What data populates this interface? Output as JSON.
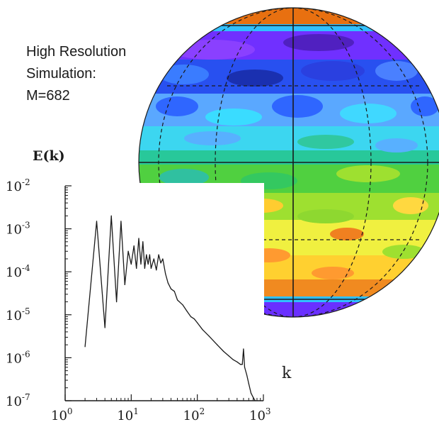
{
  "caption": {
    "line1": "High Resolution",
    "line2": "Simulation:",
    "line3": "M=682"
  },
  "globe": {
    "description_colors": [
      "#e06a10",
      "#ff9a30",
      "#ffd030",
      "#ffff40",
      "#9ae030",
      "#40d040",
      "#20c0a0",
      "#40d0ff",
      "#70b0ff",
      "#3060ff",
      "#2030c0",
      "#7a30ff"
    ]
  },
  "chart_data": {
    "type": "line",
    "title": "",
    "ylabel": "E(k)",
    "xlabel": "k",
    "xscale": "log",
    "yscale": "log",
    "xlim": [
      1,
      1000
    ],
    "ylim": [
      1e-07,
      0.01
    ],
    "x_ticks": [
      {
        "base": "10",
        "exp": "0"
      },
      {
        "base": "10",
        "exp": "1"
      },
      {
        "base": "10",
        "exp": "2"
      },
      {
        "base": "10",
        "exp": "3"
      }
    ],
    "y_ticks": [
      {
        "base": "10",
        "exp": "-2"
      },
      {
        "base": "10",
        "exp": "-3"
      },
      {
        "base": "10",
        "exp": "-4"
      },
      {
        "base": "10",
        "exp": "-5"
      },
      {
        "base": "10",
        "exp": "-6"
      },
      {
        "base": "10",
        "exp": "-7"
      }
    ],
    "series": [
      {
        "color": "#1a1a1a",
        "x": [
          2,
          3,
          4,
          5,
          6,
          7,
          8,
          9,
          10,
          11,
          12,
          13,
          14,
          15,
          16,
          17,
          18,
          19,
          20,
          22,
          24,
          26,
          28,
          30,
          33,
          36,
          40,
          45,
          50,
          60,
          70,
          80,
          90,
          100,
          120,
          150,
          200,
          250,
          300,
          350,
          400,
          450,
          480,
          500,
          520,
          560,
          600,
          650,
          700,
          750
        ],
        "y": [
          1.8e-06,
          0.0015,
          5e-06,
          0.002,
          2e-05,
          0.0015,
          5e-05,
          0.0003,
          0.00015,
          0.0004,
          0.00012,
          0.0006,
          0.00015,
          0.0005,
          0.00012,
          0.00025,
          0.00015,
          0.00025,
          0.00012,
          0.0002,
          0.00011,
          0.00025,
          0.00016,
          0.0002,
          9e-05,
          5.5e-05,
          4e-05,
          3.5e-05,
          2.2e-05,
          1.7e-05,
          1.2e-05,
          9e-06,
          8e-06,
          6.5e-06,
          4.5e-06,
          3.2e-06,
          2e-06,
          1.4e-06,
          1.1e-06,
          9e-07,
          8e-07,
          7e-07,
          7e-07,
          1.6e-06,
          6e-07,
          4e-07,
          2.5e-07,
          1.5e-07,
          1.2e-07,
          1e-07
        ]
      }
    ]
  }
}
